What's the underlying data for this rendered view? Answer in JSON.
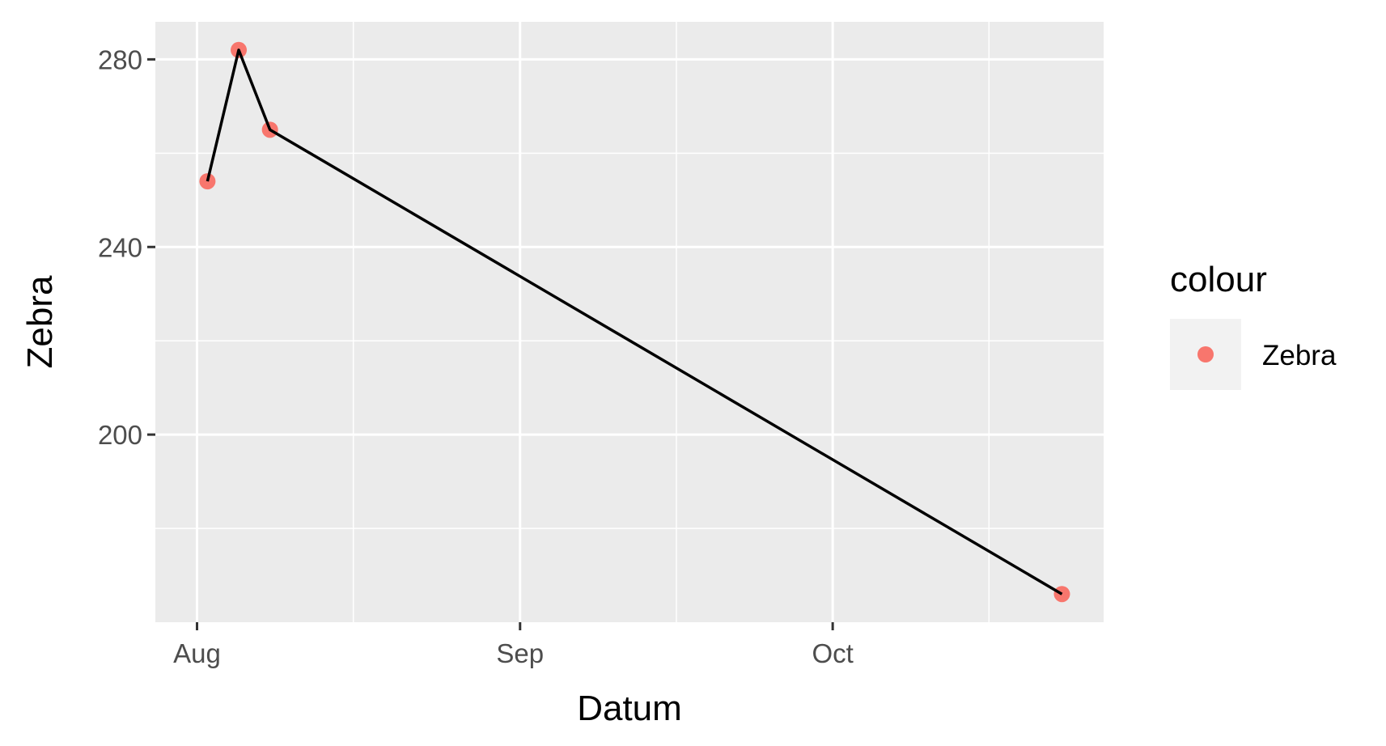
{
  "chart_data": {
    "type": "line",
    "xlabel": "Datum",
    "ylabel": "Zebra",
    "x_axis": {
      "scale": "date",
      "range": [
        "2023-07-28",
        "2023-10-27"
      ],
      "ticks": [
        {
          "date": "2023-08-01",
          "label": "Aug"
        },
        {
          "date": "2023-09-01",
          "label": "Sep"
        },
        {
          "date": "2023-10-01",
          "label": "Oct"
        }
      ],
      "minor_ticks": [
        "2023-08-16",
        "2023-09-16",
        "2023-10-16"
      ]
    },
    "y_axis": {
      "range": [
        160,
        288
      ],
      "ticks": [
        200,
        240,
        280
      ],
      "minor_ticks": [
        180,
        220,
        260
      ]
    },
    "grid": true,
    "series": [
      {
        "name": "Zebra",
        "points": [
          {
            "x": "2023-08-02",
            "y": 254
          },
          {
            "x": "2023-08-05",
            "y": 282
          },
          {
            "x": "2023-08-08",
            "y": 265
          },
          {
            "x": "2023-10-23",
            "y": 166
          }
        ]
      }
    ],
    "legend": {
      "title": "colour",
      "position": "right",
      "entries": [
        "Zebra"
      ]
    },
    "colors": {
      "panel": "#ebebeb",
      "grid": "#ffffff",
      "line": "#000000",
      "point": "#f8766d",
      "legend_key": "#f2f2f2",
      "tick": "#333333"
    }
  }
}
